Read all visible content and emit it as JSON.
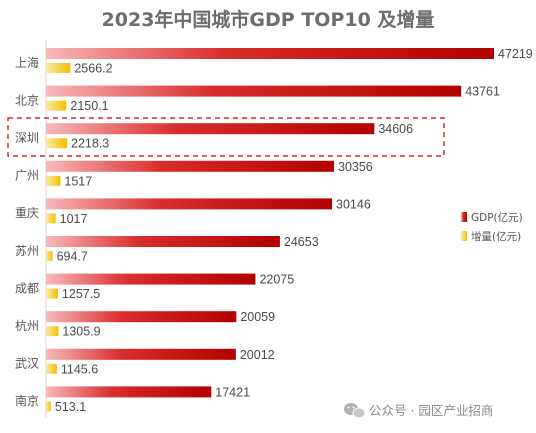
{
  "chart_data": {
    "type": "bar",
    "orientation": "horizontal",
    "title": "2023年中国城市GDP TOP10 及增量",
    "categories": [
      "上海",
      "北京",
      "深圳",
      "广州",
      "重庆",
      "苏州",
      "成都",
      "杭州",
      "武汉",
      "南京"
    ],
    "series": [
      {
        "name": "GDP(亿元)",
        "values": [
          47219,
          43761,
          34606,
          30356,
          30146,
          24653,
          22075,
          20059,
          20012,
          17421
        ],
        "color": "#c00000"
      },
      {
        "name": "增量(亿元)",
        "values": [
          2566.2,
          2150.1,
          2218.3,
          1517,
          1017,
          694.7,
          1257.5,
          1305.9,
          1145.6,
          513.1
        ],
        "color": "#f2c200"
      }
    ],
    "value_labels": [
      [
        "47219",
        "2566.2"
      ],
      [
        "43761",
        "2150.1"
      ],
      [
        "34606",
        "2218.3"
      ],
      [
        "30356",
        "1517"
      ],
      [
        "30146",
        "1017"
      ],
      [
        "24653",
        "694.7"
      ],
      [
        "22075",
        "1257.5"
      ],
      [
        "20059",
        "1305.9"
      ],
      [
        "20012",
        "1145.6"
      ],
      [
        "17421",
        "513.1"
      ]
    ],
    "highlighted_category": "深圳",
    "xlim": [
      0,
      50000
    ],
    "grid": false,
    "legend_position": "right"
  },
  "watermark": {
    "text": "公众号 · 园区产业招商",
    "icon": "wechat-icon"
  },
  "colors": {
    "highlight_border": "#c00000",
    "title": "#6d6d6d",
    "axis": "#d9d9d9"
  }
}
